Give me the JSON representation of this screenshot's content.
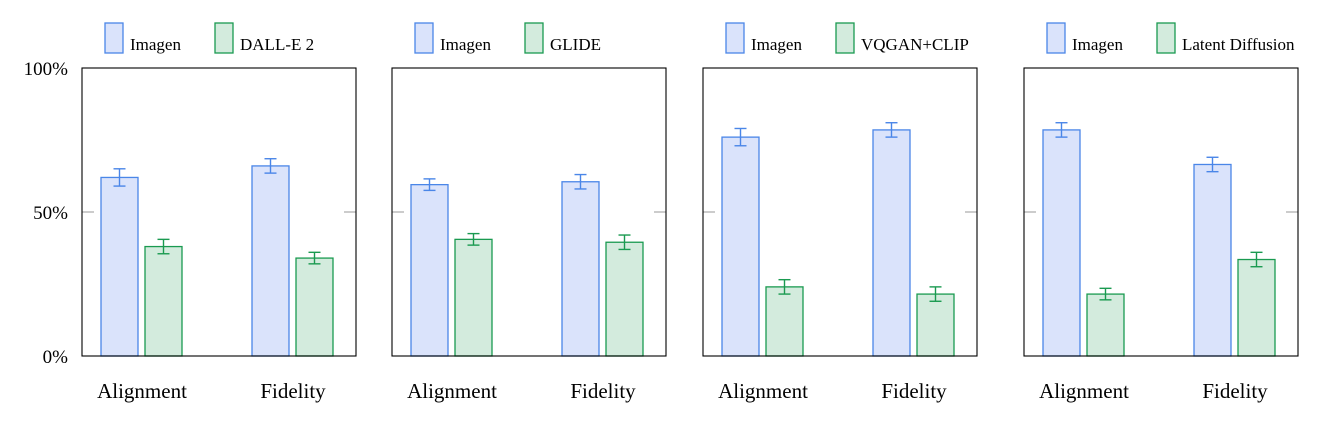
{
  "colors": {
    "imagen_fill": "#dae3fb",
    "imagen_stroke": "#4a86e8",
    "other_fill": "#d3ebdd",
    "other_stroke": "#1a9a50",
    "frame": "#000000",
    "tick": "#9a9a9a"
  },
  "y_ticks": [
    {
      "value": 0,
      "label": "0%"
    },
    {
      "value": 50,
      "label": "50%"
    },
    {
      "value": 100,
      "label": "100%"
    }
  ],
  "chart_data": [
    {
      "type": "bar",
      "categories": [
        "Alignment",
        "Fidelity"
      ],
      "ylim": [
        0,
        100
      ],
      "series": [
        {
          "name": "Imagen",
          "values": [
            62,
            66
          ],
          "errors": [
            3,
            2.5
          ]
        },
        {
          "name": "DALL-E 2",
          "values": [
            38,
            34
          ],
          "errors": [
            2.5,
            2
          ]
        }
      ]
    },
    {
      "type": "bar",
      "categories": [
        "Alignment",
        "Fidelity"
      ],
      "ylim": [
        0,
        100
      ],
      "series": [
        {
          "name": "Imagen",
          "values": [
            59.5,
            60.5
          ],
          "errors": [
            2,
            2.5
          ]
        },
        {
          "name": "GLIDE",
          "values": [
            40.5,
            39.5
          ],
          "errors": [
            2,
            2.5
          ]
        }
      ]
    },
    {
      "type": "bar",
      "categories": [
        "Alignment",
        "Fidelity"
      ],
      "ylim": [
        0,
        100
      ],
      "series": [
        {
          "name": "Imagen",
          "values": [
            76,
            78.5
          ],
          "errors": [
            3,
            2.5
          ]
        },
        {
          "name": "VQGAN+CLIP",
          "values": [
            24,
            21.5
          ],
          "errors": [
            2.5,
            2.5
          ]
        }
      ]
    },
    {
      "type": "bar",
      "categories": [
        "Alignment",
        "Fidelity"
      ],
      "ylim": [
        0,
        100
      ],
      "series": [
        {
          "name": "Imagen",
          "values": [
            78.5,
            66.5
          ],
          "errors": [
            2.5,
            2.5
          ]
        },
        {
          "name": "Latent Diffusion",
          "values": [
            21.5,
            33.5
          ],
          "errors": [
            2,
            2.5
          ]
        }
      ]
    }
  ]
}
